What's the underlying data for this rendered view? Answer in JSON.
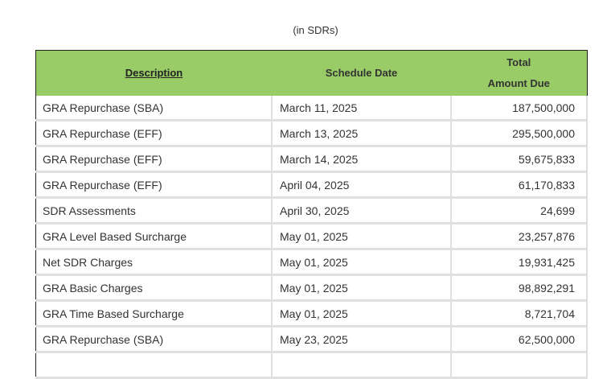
{
  "caption": "(in SDRs)",
  "header": {
    "description": "Description",
    "schedule_date": "Schedule Date",
    "total_line1": "Total",
    "total_line2": "Amount Due",
    "color": "#99cc66"
  },
  "rows": [
    {
      "description": "GRA Repurchase (SBA)",
      "date": "March 11, 2025",
      "amount": "187,500,000"
    },
    {
      "description": "GRA Repurchase (EFF)",
      "date": "March 13, 2025",
      "amount": "295,500,000"
    },
    {
      "description": "GRA Repurchase (EFF)",
      "date": "March 14, 2025",
      "amount": "59,675,833"
    },
    {
      "description": "GRA Repurchase (EFF)",
      "date": "April 04, 2025",
      "amount": "61,170,833"
    },
    {
      "description": "SDR Assessments",
      "date": "April 30, 2025",
      "amount": "24,699"
    },
    {
      "description": "GRA Level Based Surcharge",
      "date": "May 01, 2025",
      "amount": "23,257,876"
    },
    {
      "description": "Net SDR Charges",
      "date": "May 01, 2025",
      "amount": "19,931,425"
    },
    {
      "description": "GRA Basic Charges",
      "date": "May 01, 2025",
      "amount": "98,892,291"
    },
    {
      "description": "GRA Time Based Surcharge",
      "date": "May 01, 2025",
      "amount": "8,721,704"
    },
    {
      "description": "GRA Repurchase (SBA)",
      "date": "May 23, 2025",
      "amount": "62,500,000"
    }
  ]
}
